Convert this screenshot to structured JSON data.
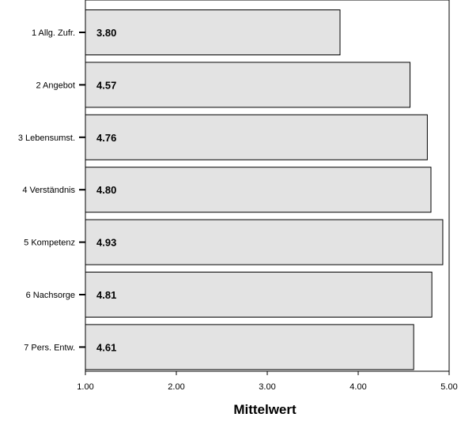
{
  "chart_data": {
    "type": "bar",
    "orientation": "horizontal",
    "categories": [
      "1 Allg. Zufr.",
      "2 Angebot",
      "3 Lebensumst.",
      "4 Verständnis",
      "5 Kompetenz",
      "6 Nachsorge",
      "7 Pers. Entw."
    ],
    "values": [
      3.8,
      4.57,
      4.76,
      4.8,
      4.93,
      4.81,
      4.61
    ],
    "value_labels": [
      "3.80",
      "4.57",
      "4.76",
      "4.80",
      "4.93",
      "4.81",
      "4.61"
    ],
    "xlabel": "Mittelwert",
    "ylabel": "",
    "xlim": [
      1.0,
      5.0
    ],
    "x_ticks": [
      1.0,
      2.0,
      3.0,
      4.0,
      5.0
    ],
    "x_tick_labels": [
      "1.00",
      "2.00",
      "3.00",
      "4.00",
      "5.00"
    ],
    "grid": false,
    "legend": "none",
    "colors": {
      "bar_fill": "#e3e3e3",
      "bar_stroke": "#000000",
      "axis": "#000000"
    }
  }
}
